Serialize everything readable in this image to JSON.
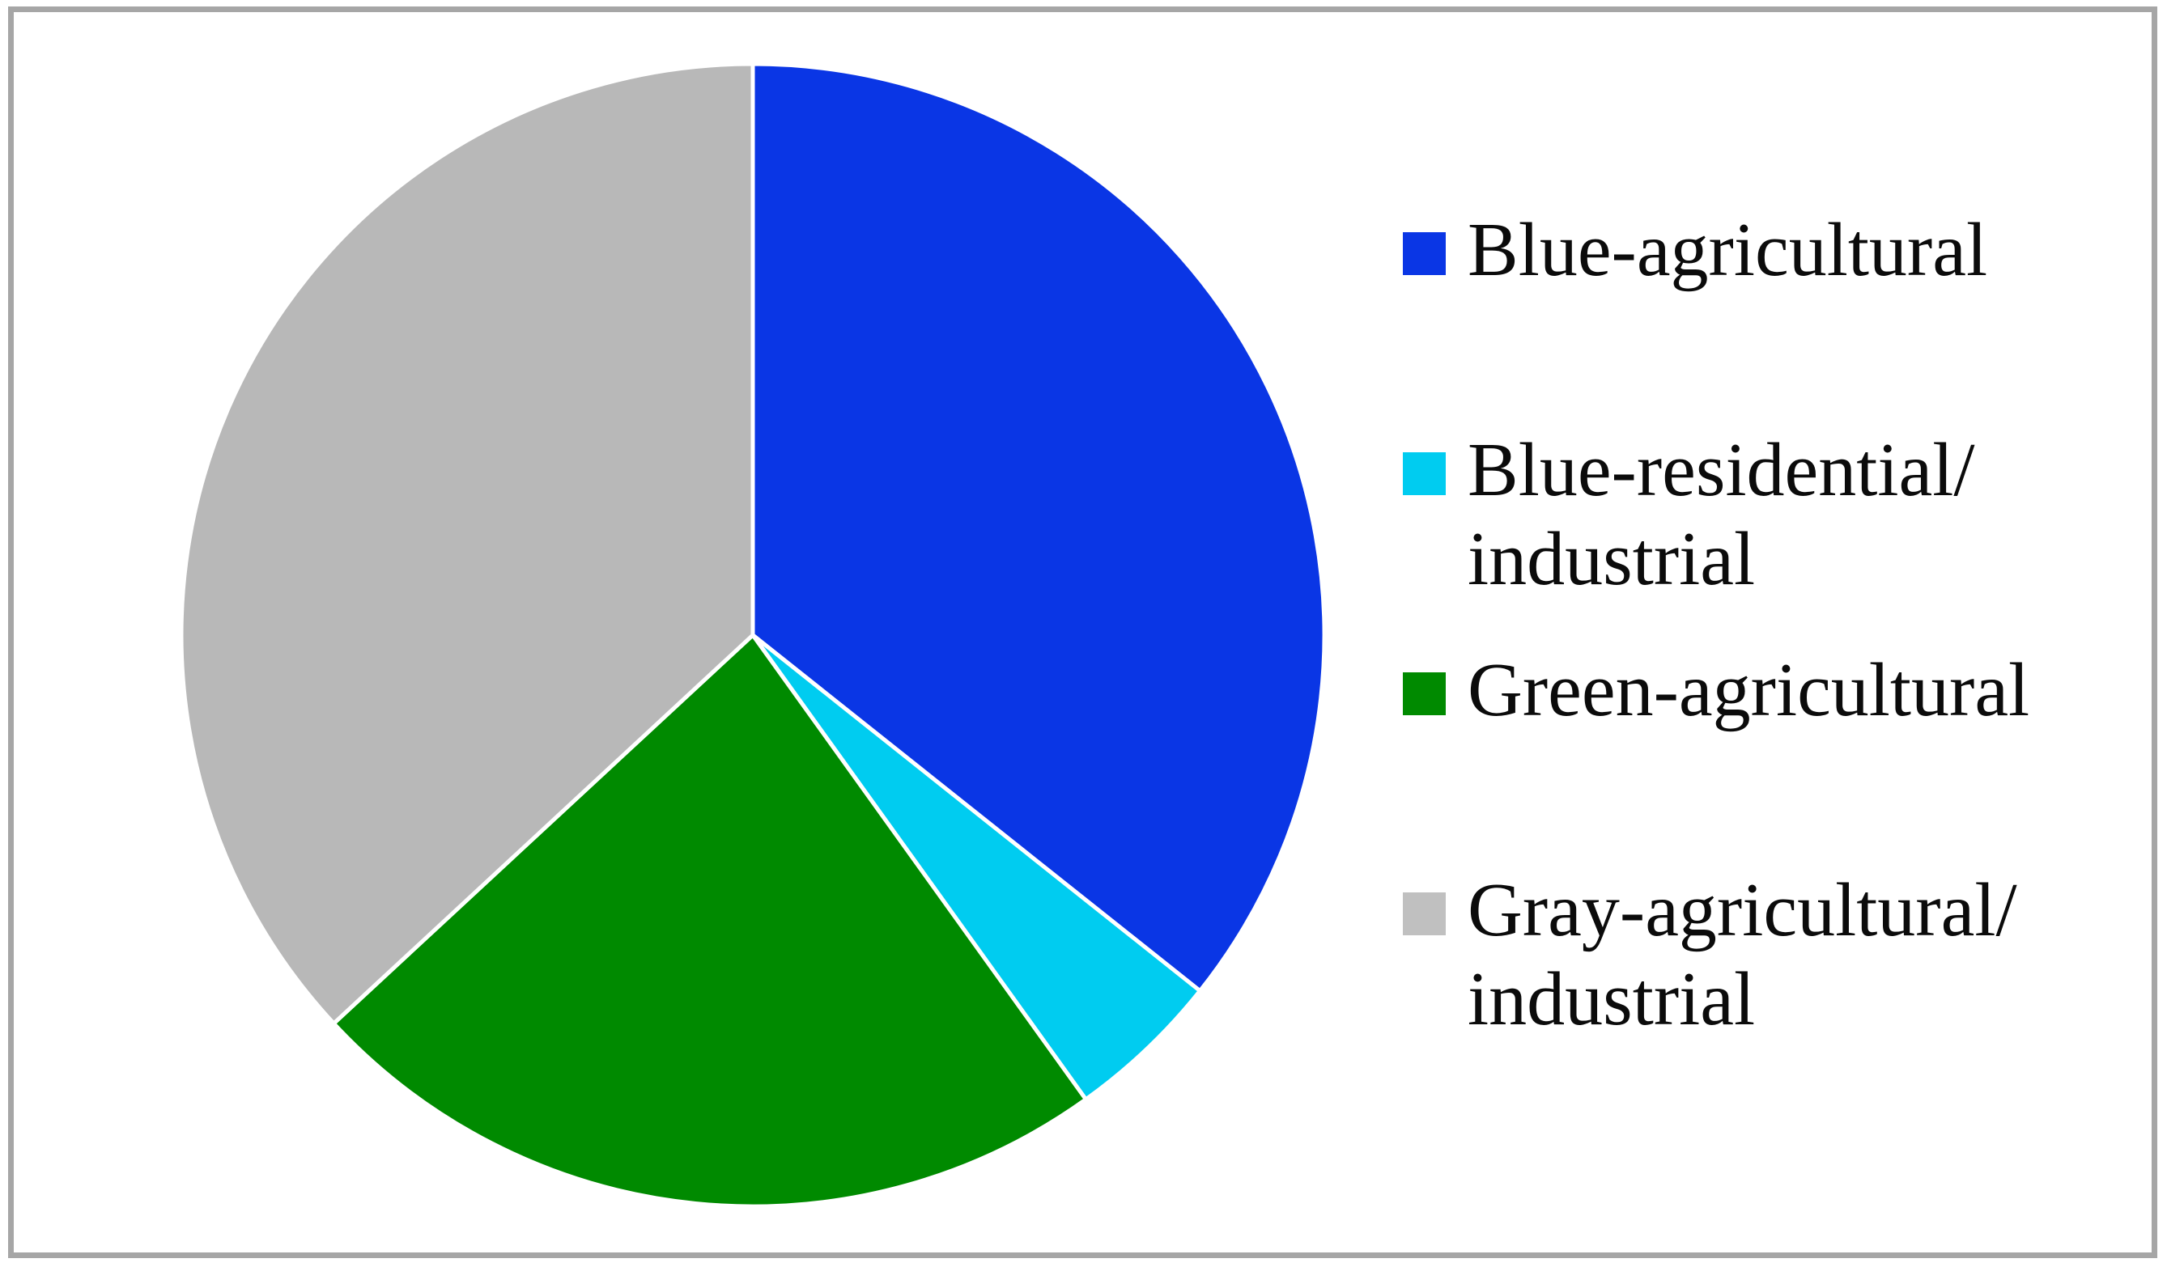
{
  "chart_data": {
    "type": "pie",
    "title": "",
    "categories": [
      "Blue-agricultural",
      "Blue-residential/industrial",
      "Green-agricultural",
      "Gray-agricultural/industrial"
    ],
    "values_pct": [
      35.7,
      4.4,
      23.0,
      36.9
    ],
    "colors": [
      "#0a36e5",
      "#00ccf0",
      "#008a00",
      "#b8b8b8"
    ],
    "start_angle_deg": 0,
    "direction": "clockwise",
    "slice_separator_color": "#ffffff",
    "legend_position": "right",
    "data_labels": false
  },
  "legend": {
    "items": [
      {
        "label": "Blue-agricultural",
        "color": "#0a36e5"
      },
      {
        "label": "Blue-residential/\nindustrial",
        "color": "#00ccf0"
      },
      {
        "label": "Green-agricultural",
        "color": "#008a00"
      },
      {
        "label": "Gray-agricultural/\nindustrial",
        "color": "#c0c0c0"
      }
    ]
  },
  "frame_border_color": "#a6a6a6"
}
